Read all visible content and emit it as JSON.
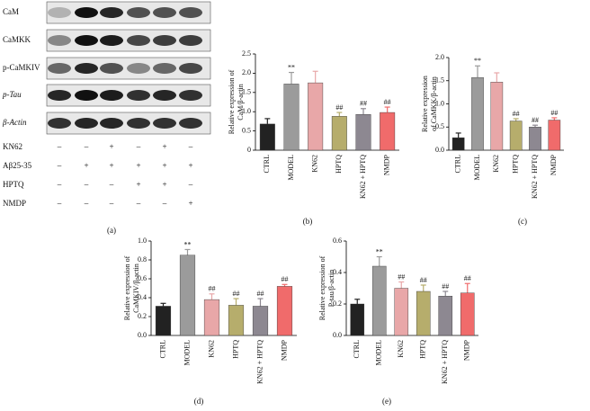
{
  "blot": {
    "proteins": [
      "CaM",
      "CaMKK",
      "p-CaMKIV",
      "p-Tau",
      "β-Actin"
    ],
    "treatments": [
      {
        "name": "KN62",
        "signs": [
          "–",
          "–",
          "+",
          "–",
          "+",
          "–"
        ]
      },
      {
        "name": "Aβ25-35",
        "signs": [
          "–",
          "+",
          "+",
          "+",
          "+",
          "+"
        ]
      },
      {
        "name": "HPTQ",
        "signs": [
          "–",
          "–",
          "–",
          "+",
          "+",
          "–"
        ]
      },
      {
        "name": "NMDP",
        "signs": [
          "–",
          "–",
          "–",
          "–",
          "–",
          "+"
        ]
      }
    ],
    "label": "(a)"
  },
  "chart_data": [
    {
      "type": "bar",
      "label": "(b)",
      "ylabel": [
        "Relative expression of",
        "CaM/β-actin"
      ],
      "categories": [
        "CTRL",
        "MODEL",
        "KN62",
        "HPTQ",
        "KN62 + HPTQ",
        "NMDP"
      ],
      "values": [
        0.68,
        1.72,
        1.75,
        0.88,
        0.93,
        0.98
      ],
      "errors": [
        0.14,
        0.3,
        0.3,
        0.1,
        0.15,
        0.14
      ],
      "annotations": [
        null,
        "**",
        null,
        "##",
        "##",
        "##"
      ],
      "colors": [
        "#222222",
        "#9b9b9b",
        "#e8a7a8",
        "#b6ad6c",
        "#8d8891",
        "#f06b6b"
      ],
      "ylim": [
        0,
        2.5
      ],
      "yticks": [
        0,
        0.5,
        {
          "value": 1,
          "label": "1.0"
        },
        1.5,
        {
          "value": 2,
          "label": "2.0"
        },
        2.5
      ]
    },
    {
      "type": "bar",
      "label": "(c)",
      "ylabel": [
        "Relative expression",
        "of CaMKK/β-actin"
      ],
      "categories": [
        "CTRL",
        "MODEL",
        "KN62",
        "HPTQ",
        "KN62 + HPTQ",
        "NMDP"
      ],
      "values": [
        0.27,
        1.57,
        1.47,
        0.63,
        0.5,
        0.65
      ],
      "errors": [
        0.1,
        0.25,
        0.2,
        0.05,
        0.04,
        0.05
      ],
      "annotations": [
        null,
        "**",
        null,
        "##",
        "##",
        "##"
      ],
      "colors": [
        "#222222",
        "#9b9b9b",
        "#e8a7a8",
        "#b6ad6c",
        "#8d8891",
        "#f06b6b"
      ],
      "ylim": [
        0,
        2
      ],
      "yticks": [
        {
          "value": 0,
          "label": "0.0"
        },
        0.5,
        {
          "value": 1,
          "label": "1.0"
        },
        1.5,
        {
          "value": 2,
          "label": "2.0"
        }
      ]
    },
    {
      "type": "bar",
      "label": "(d)",
      "ylabel": [
        "Relative expression of",
        "CaMKIV/β-actin"
      ],
      "categories": [
        "CTRL",
        "MODEL",
        "KN62",
        "HPTQ",
        "KN62 + HPTQ",
        "NMDP"
      ],
      "values": [
        0.31,
        0.85,
        0.38,
        0.32,
        0.31,
        0.52
      ],
      "errors": [
        0.03,
        0.06,
        0.06,
        0.07,
        0.08,
        0.02
      ],
      "annotations": [
        null,
        "**",
        "##",
        "##",
        "##",
        "##"
      ],
      "colors": [
        "#222222",
        "#9b9b9b",
        "#e8a7a8",
        "#b6ad6c",
        "#8d8891",
        "#f06b6b"
      ],
      "ylim": [
        0,
        1
      ],
      "yticks": [
        {
          "value": 0,
          "label": "0.0"
        },
        0.2,
        0.4,
        0.6,
        0.8,
        {
          "value": 1,
          "label": "1.0"
        }
      ]
    },
    {
      "type": "bar",
      "label": "(e)",
      "ylabel": [
        "Relative expression of",
        "P-tau/β-actin"
      ],
      "categories": [
        "CTRL",
        "MODEL",
        "KN62",
        "HPTQ",
        "KN62 + HPTQ",
        "NMDP"
      ],
      "values": [
        0.2,
        0.44,
        0.3,
        0.28,
        0.25,
        0.27
      ],
      "errors": [
        0.03,
        0.06,
        0.04,
        0.04,
        0.03,
        0.06
      ],
      "annotations": [
        null,
        "**",
        "##",
        "##",
        "##",
        "##"
      ],
      "colors": [
        "#222222",
        "#9b9b9b",
        "#e8a7a8",
        "#b6ad6c",
        "#8d8891",
        "#f06b6b"
      ],
      "ylim": [
        0,
        0.6
      ],
      "yticks": [
        {
          "value": 0,
          "label": "0.0"
        },
        0.2,
        0.4,
        0.6
      ]
    }
  ]
}
